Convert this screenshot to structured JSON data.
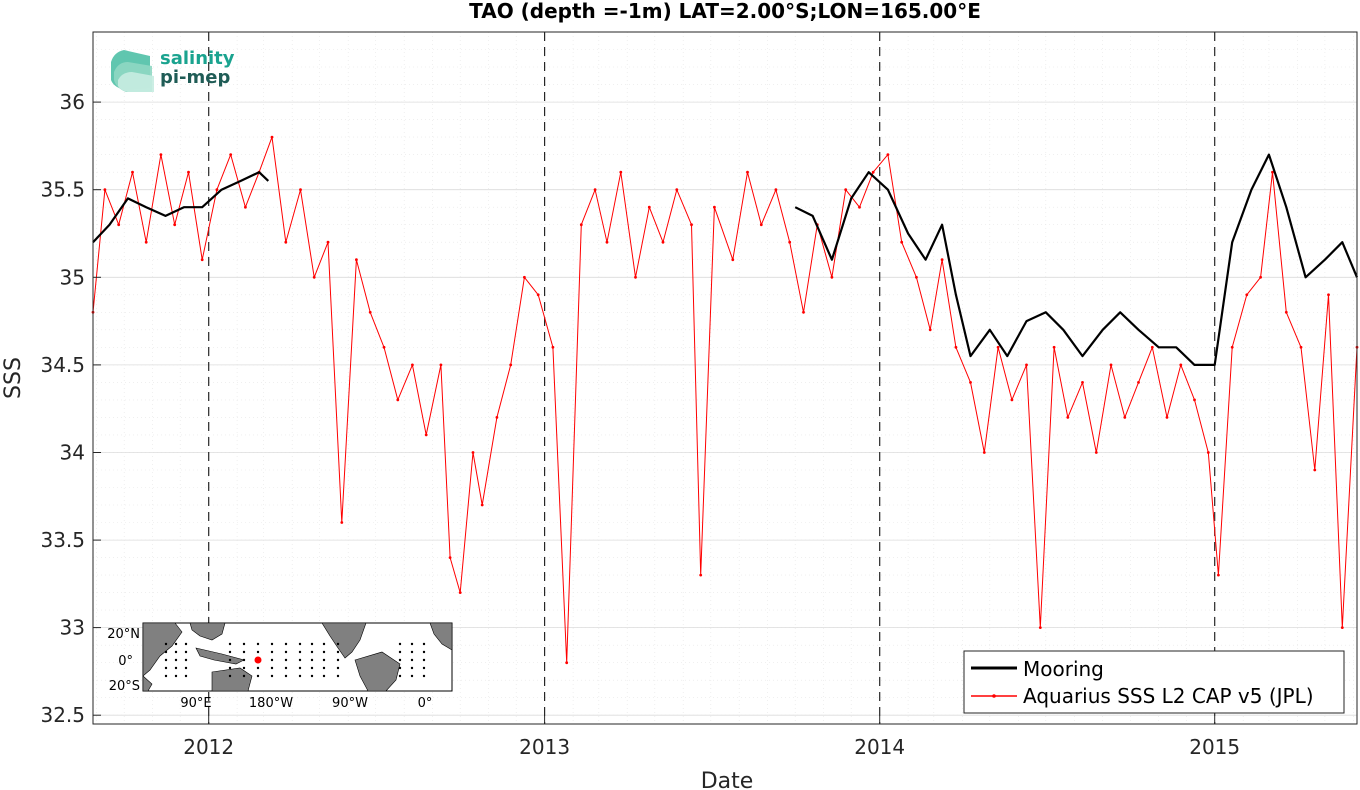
{
  "logo": {
    "line1": "salinity",
    "line2": "pi-mep"
  },
  "inset_map": {
    "lat_labels": [
      "20°N",
      "0°",
      "20°S"
    ],
    "lon_labels": [
      "90°E",
      "180°W",
      "90°W",
      "0°"
    ]
  },
  "chart_data": {
    "type": "line",
    "title": "TAO (depth =-1m) LAT=2.00°S;LON=165.00°E",
    "xlabel": "Date",
    "ylabel": "SSS",
    "xlim": [
      "2011-08-28",
      "2015-06-05"
    ],
    "ylim": [
      32.45,
      36.4
    ],
    "x_ticks": [
      "2012",
      "2013",
      "2014",
      "2015"
    ],
    "y_ticks": [
      "32.5",
      "33",
      "33.5",
      "34",
      "34.5",
      "35",
      "35.5",
      "36"
    ],
    "year_dividers": [
      "2012-01-01",
      "2013-01-01",
      "2014-01-01",
      "2015-01-01"
    ],
    "grid": true,
    "legend_position": "bottom-right",
    "colors": {
      "mooring": "#000000",
      "aquarius": "#ff0000",
      "logo": "#1aa38f"
    },
    "series": [
      {
        "name": "Mooring",
        "x": [
          "2011-08-28",
          "2011-09-15",
          "2011-10-05",
          "2011-10-25",
          "2011-11-15",
          "2011-12-05",
          "2011-12-25",
          "2012-01-15",
          "2012-02-05",
          "2012-02-25",
          "2012-03-06"
        ],
        "y": [
          35.2,
          35.3,
          35.45,
          35.4,
          35.35,
          35.4,
          35.4,
          35.5,
          35.55,
          35.6,
          35.55
        ]
      },
      {
        "name": "Mooring",
        "x": [
          "2013-10-01",
          "2013-10-20",
          "2013-11-10",
          "2013-12-01",
          "2013-12-20",
          "2014-01-10",
          "2014-02-01",
          "2014-02-20",
          "2014-03-10",
          "2014-03-25",
          "2014-04-10",
          "2014-05-01",
          "2014-05-20",
          "2014-06-10",
          "2014-07-01",
          "2014-07-20",
          "2014-08-10",
          "2014-09-01",
          "2014-09-20",
          "2014-10-10",
          "2014-11-01",
          "2014-11-20",
          "2014-12-10",
          "2015-01-01",
          "2015-01-20",
          "2015-02-10",
          "2015-03-01",
          "2015-03-20",
          "2015-04-10",
          "2015-05-01",
          "2015-05-20",
          "2015-06-05"
        ],
        "y": [
          35.4,
          35.35,
          35.1,
          35.45,
          35.6,
          35.5,
          35.25,
          35.1,
          35.3,
          34.9,
          34.55,
          34.7,
          34.55,
          34.75,
          34.8,
          34.7,
          34.55,
          34.7,
          34.8,
          34.7,
          34.6,
          34.6,
          34.5,
          34.5,
          35.2,
          35.5,
          35.7,
          35.4,
          35.0,
          35.1,
          35.2,
          35.0
        ]
      },
      {
        "name": "Aquarius SSS L2 CAP v5 (JPL)",
        "x": [
          "2011-08-28",
          "2011-09-10",
          "2011-09-25",
          "2011-10-10",
          "2011-10-25",
          "2011-11-10",
          "2011-11-25",
          "2011-12-10",
          "2011-12-25",
          "2012-01-10",
          "2012-01-25",
          "2012-02-10",
          "2012-02-25",
          "2012-03-10",
          "2012-03-25",
          "2012-04-10",
          "2012-04-25",
          "2012-05-10",
          "2012-05-25",
          "2012-06-10",
          "2012-06-25",
          "2012-07-10",
          "2012-07-25",
          "2012-08-10",
          "2012-08-25",
          "2012-09-10",
          "2012-09-20",
          "2012-10-01",
          "2012-10-15",
          "2012-10-25",
          "2012-11-10",
          "2012-11-25",
          "2012-12-10",
          "2012-12-25",
          "2013-01-10",
          "2013-01-25",
          "2013-02-10",
          "2013-02-25",
          "2013-03-10",
          "2013-03-25",
          "2013-04-10",
          "2013-04-25",
          "2013-05-10",
          "2013-05-25",
          "2013-06-10",
          "2013-06-20",
          "2013-07-05",
          "2013-07-25",
          "2013-08-10",
          "2013-08-25",
          "2013-09-10",
          "2013-09-25",
          "2013-10-10",
          "2013-10-25",
          "2013-11-10",
          "2013-11-25",
          "2013-12-10",
          "2013-12-25",
          "2014-01-10",
          "2014-01-25",
          "2014-02-10",
          "2014-02-25",
          "2014-03-10",
          "2014-03-25",
          "2014-04-10",
          "2014-04-25",
          "2014-05-10",
          "2014-05-25",
          "2014-06-10",
          "2014-06-25",
          "2014-07-10",
          "2014-07-25",
          "2014-08-10",
          "2014-08-25",
          "2014-09-10",
          "2014-09-25",
          "2014-10-10",
          "2014-10-25",
          "2014-11-10",
          "2014-11-25",
          "2014-12-10",
          "2014-12-25",
          "2015-01-05",
          "2015-01-20",
          "2015-02-05",
          "2015-02-20",
          "2015-03-05",
          "2015-03-20",
          "2015-04-05",
          "2015-04-20",
          "2015-05-05",
          "2015-05-20",
          "2015-06-05"
        ],
        "y": [
          34.8,
          35.5,
          35.3,
          35.6,
          35.2,
          35.7,
          35.3,
          35.6,
          35.1,
          35.5,
          35.7,
          35.4,
          35.6,
          35.8,
          35.2,
          35.5,
          35.0,
          35.2,
          33.6,
          35.1,
          34.8,
          34.6,
          34.3,
          34.5,
          34.1,
          34.5,
          33.4,
          33.2,
          34.0,
          33.7,
          34.2,
          34.5,
          35.0,
          34.9,
          34.6,
          32.8,
          35.3,
          35.5,
          35.2,
          35.6,
          35.0,
          35.4,
          35.2,
          35.5,
          35.3,
          33.3,
          35.4,
          35.1,
          35.6,
          35.3,
          35.5,
          35.2,
          34.8,
          35.3,
          35.0,
          35.5,
          35.4,
          35.6,
          35.7,
          35.2,
          35.0,
          34.7,
          35.1,
          34.6,
          34.4,
          34.0,
          34.6,
          34.3,
          34.5,
          33.0,
          34.6,
          34.2,
          34.4,
          34.0,
          34.5,
          34.2,
          34.4,
          34.6,
          34.2,
          34.5,
          34.3,
          34.0,
          33.3,
          34.6,
          34.9,
          35.0,
          35.6,
          34.8,
          34.6,
          33.9,
          34.9,
          33.0,
          34.6
        ]
      }
    ]
  }
}
